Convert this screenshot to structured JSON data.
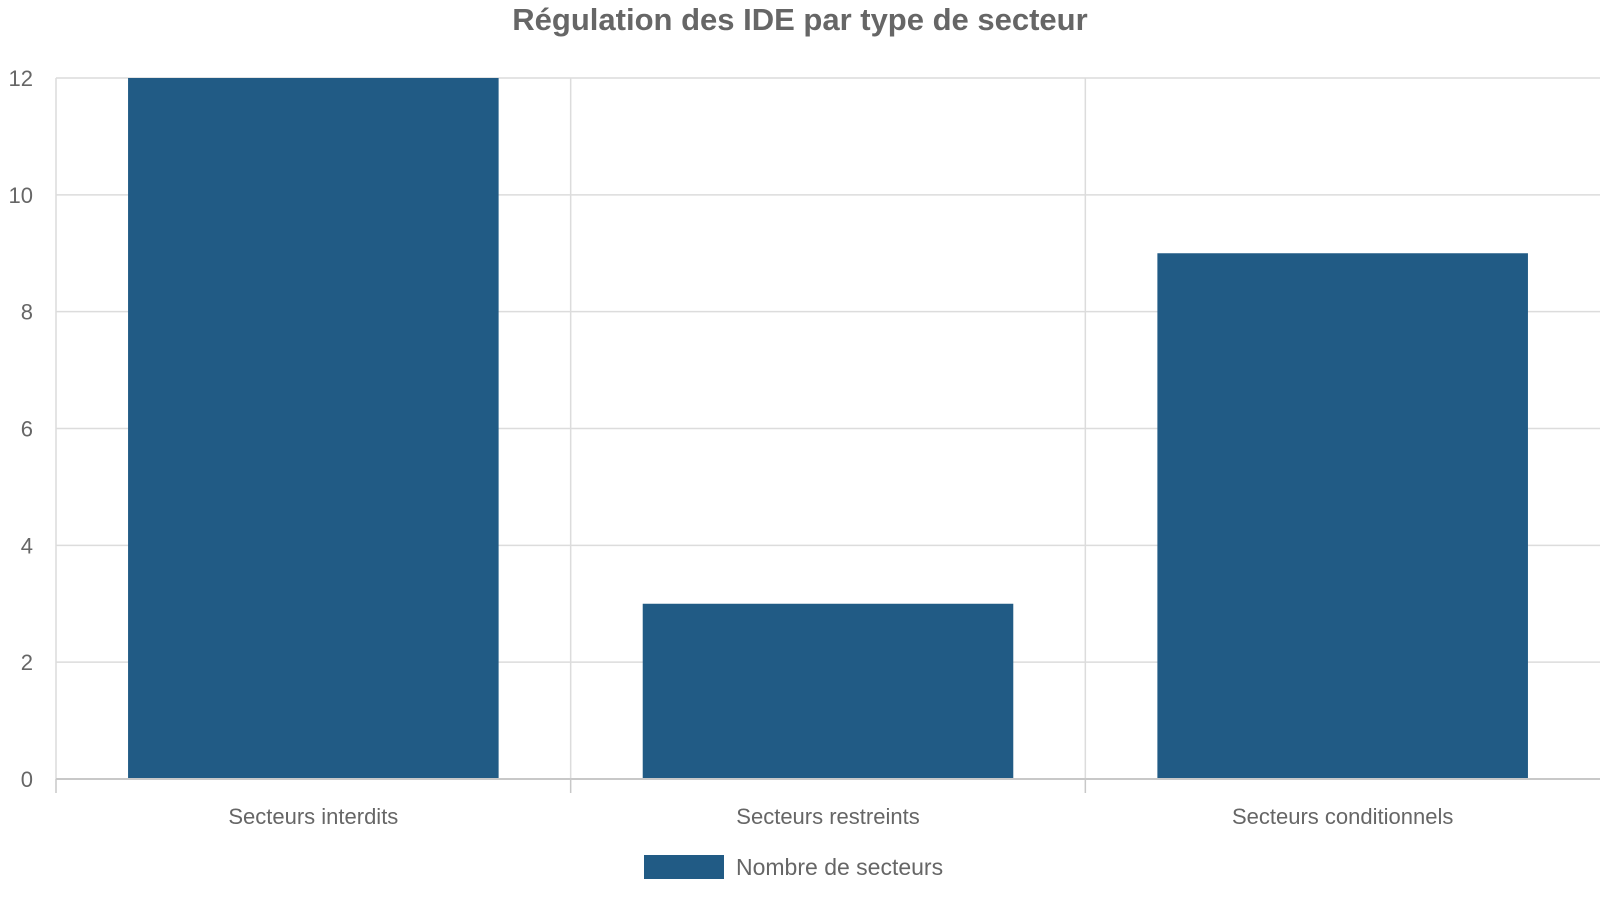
{
  "chart_data": {
    "type": "bar",
    "title": "Régulation des IDE par type de secteur",
    "xlabel": "",
    "ylabel": "",
    "categories": [
      "Secteurs interdits",
      "Secteurs restreints",
      "Secteurs conditionnels"
    ],
    "series": [
      {
        "name": "Nombre de secteurs",
        "values": [
          12,
          3,
          9
        ],
        "color": "#215b85"
      }
    ],
    "ylim": [
      0,
      12
    ],
    "yticks": [
      "0",
      "2",
      "4",
      "6",
      "8",
      "10",
      "12"
    ],
    "grid": true,
    "legend": "bottom-center"
  },
  "colors": {
    "bar": "#215b85",
    "grid": "#dcdcdc",
    "axis": "#c8c8c8",
    "text": "#666666"
  }
}
